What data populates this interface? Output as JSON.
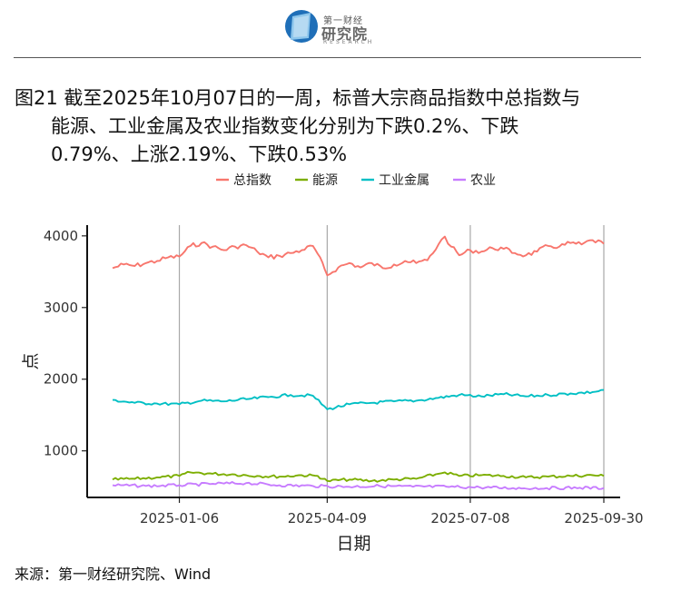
{
  "header": {
    "logo_line1": "第一财经",
    "logo_line2": "研究院",
    "logo_line3": "RESEARCH"
  },
  "title": {
    "line1": "图21  截至2025年10月07日的一周，标普大宗商品指数中总指数与",
    "line2": "能源、工业金属及农业指数变化分别为下跌0.2%、下跌",
    "line3": "0.79%、上涨2.19%、下跌0.53%"
  },
  "source": "来源：第一财经研究院、Wind",
  "chart_data": {
    "type": "line",
    "xlabel": "日期",
    "ylabel": "点",
    "x_ticks": [
      "2025-01-06",
      "2025-04-09",
      "2025-07-08",
      "2025-09-30"
    ],
    "y_ticks": [
      1000,
      2000,
      3000,
      4000
    ],
    "ylim": [
      350,
      4150
    ],
    "x_range": [
      "2024-11-25",
      "2025-09-30"
    ],
    "grid": "vertical lines at x ticks",
    "legend_position": "top",
    "series": [
      {
        "name": "总指数",
        "color": "#F8766D",
        "points": [
          [
            "2024-11-25",
            3550
          ],
          [
            "2024-12-02",
            3600
          ],
          [
            "2024-12-09",
            3580
          ],
          [
            "2024-12-16",
            3620
          ],
          [
            "2024-12-23",
            3650
          ],
          [
            "2024-12-30",
            3700
          ],
          [
            "2025-01-06",
            3710
          ],
          [
            "2025-01-13",
            3860
          ],
          [
            "2025-01-20",
            3900
          ],
          [
            "2025-01-27",
            3850
          ],
          [
            "2025-02-03",
            3800
          ],
          [
            "2025-02-10",
            3850
          ],
          [
            "2025-02-17",
            3870
          ],
          [
            "2025-02-24",
            3780
          ],
          [
            "2025-03-03",
            3700
          ],
          [
            "2025-03-10",
            3720
          ],
          [
            "2025-03-17",
            3760
          ],
          [
            "2025-03-24",
            3800
          ],
          [
            "2025-03-31",
            3860
          ],
          [
            "2025-04-03",
            3750
          ],
          [
            "2025-04-09",
            3450
          ],
          [
            "2025-04-16",
            3560
          ],
          [
            "2025-04-23",
            3620
          ],
          [
            "2025-04-30",
            3560
          ],
          [
            "2025-05-07",
            3620
          ],
          [
            "2025-05-14",
            3550
          ],
          [
            "2025-05-21",
            3600
          ],
          [
            "2025-05-28",
            3650
          ],
          [
            "2025-06-04",
            3620
          ],
          [
            "2025-06-11",
            3660
          ],
          [
            "2025-06-18",
            3880
          ],
          [
            "2025-06-22",
            3990
          ],
          [
            "2025-06-26",
            3850
          ],
          [
            "2025-07-01",
            3730
          ],
          [
            "2025-07-08",
            3800
          ],
          [
            "2025-07-15",
            3780
          ],
          [
            "2025-07-22",
            3830
          ],
          [
            "2025-07-29",
            3820
          ],
          [
            "2025-08-05",
            3760
          ],
          [
            "2025-08-12",
            3730
          ],
          [
            "2025-08-19",
            3780
          ],
          [
            "2025-08-26",
            3860
          ],
          [
            "2025-09-02",
            3850
          ],
          [
            "2025-09-09",
            3900
          ],
          [
            "2025-09-16",
            3880
          ],
          [
            "2025-09-23",
            3940
          ],
          [
            "2025-09-30",
            3890
          ]
        ]
      },
      {
        "name": "能源",
        "color": "#7CAE00",
        "points": [
          [
            "2024-11-25",
            600
          ],
          [
            "2024-12-09",
            610
          ],
          [
            "2024-12-23",
            630
          ],
          [
            "2025-01-06",
            650
          ],
          [
            "2025-01-13",
            700
          ],
          [
            "2025-01-27",
            680
          ],
          [
            "2025-02-10",
            670
          ],
          [
            "2025-02-24",
            650
          ],
          [
            "2025-03-10",
            640
          ],
          [
            "2025-03-24",
            660
          ],
          [
            "2025-04-03",
            650
          ],
          [
            "2025-04-09",
            580
          ],
          [
            "2025-04-23",
            600
          ],
          [
            "2025-05-07",
            580
          ],
          [
            "2025-05-21",
            600
          ],
          [
            "2025-06-04",
            610
          ],
          [
            "2025-06-18",
            680
          ],
          [
            "2025-06-22",
            700
          ],
          [
            "2025-07-01",
            650
          ],
          [
            "2025-07-15",
            660
          ],
          [
            "2025-07-29",
            650
          ],
          [
            "2025-08-12",
            630
          ],
          [
            "2025-08-26",
            640
          ],
          [
            "2025-09-09",
            650
          ],
          [
            "2025-09-23",
            660
          ],
          [
            "2025-09-30",
            650
          ]
        ]
      },
      {
        "name": "工业金属",
        "color": "#00BFC4",
        "points": [
          [
            "2024-11-25",
            1710
          ],
          [
            "2024-12-09",
            1670
          ],
          [
            "2024-12-23",
            1660
          ],
          [
            "2025-01-06",
            1650
          ],
          [
            "2025-01-20",
            1700
          ],
          [
            "2025-02-03",
            1690
          ],
          [
            "2025-02-17",
            1720
          ],
          [
            "2025-03-03",
            1750
          ],
          [
            "2025-03-17",
            1780
          ],
          [
            "2025-03-31",
            1770
          ],
          [
            "2025-04-09",
            1580
          ],
          [
            "2025-04-23",
            1650
          ],
          [
            "2025-05-07",
            1670
          ],
          [
            "2025-05-21",
            1690
          ],
          [
            "2025-06-04",
            1700
          ],
          [
            "2025-06-18",
            1740
          ],
          [
            "2025-07-01",
            1780
          ],
          [
            "2025-07-15",
            1760
          ],
          [
            "2025-07-29",
            1790
          ],
          [
            "2025-08-12",
            1760
          ],
          [
            "2025-08-26",
            1780
          ],
          [
            "2025-09-09",
            1800
          ],
          [
            "2025-09-23",
            1820
          ],
          [
            "2025-09-30",
            1850
          ]
        ]
      },
      {
        "name": "农业",
        "color": "#C77CFF",
        "points": [
          [
            "2024-11-25",
            520
          ],
          [
            "2024-12-16",
            510
          ],
          [
            "2025-01-06",
            520
          ],
          [
            "2025-01-27",
            540
          ],
          [
            "2025-02-17",
            550
          ],
          [
            "2025-03-10",
            520
          ],
          [
            "2025-03-31",
            510
          ],
          [
            "2025-04-21",
            500
          ],
          [
            "2025-05-12",
            510
          ],
          [
            "2025-06-02",
            500
          ],
          [
            "2025-06-23",
            500
          ],
          [
            "2025-07-14",
            490
          ],
          [
            "2025-08-04",
            480
          ],
          [
            "2025-08-25",
            480
          ],
          [
            "2025-09-15",
            485
          ],
          [
            "2025-09-30",
            480
          ]
        ]
      }
    ]
  }
}
